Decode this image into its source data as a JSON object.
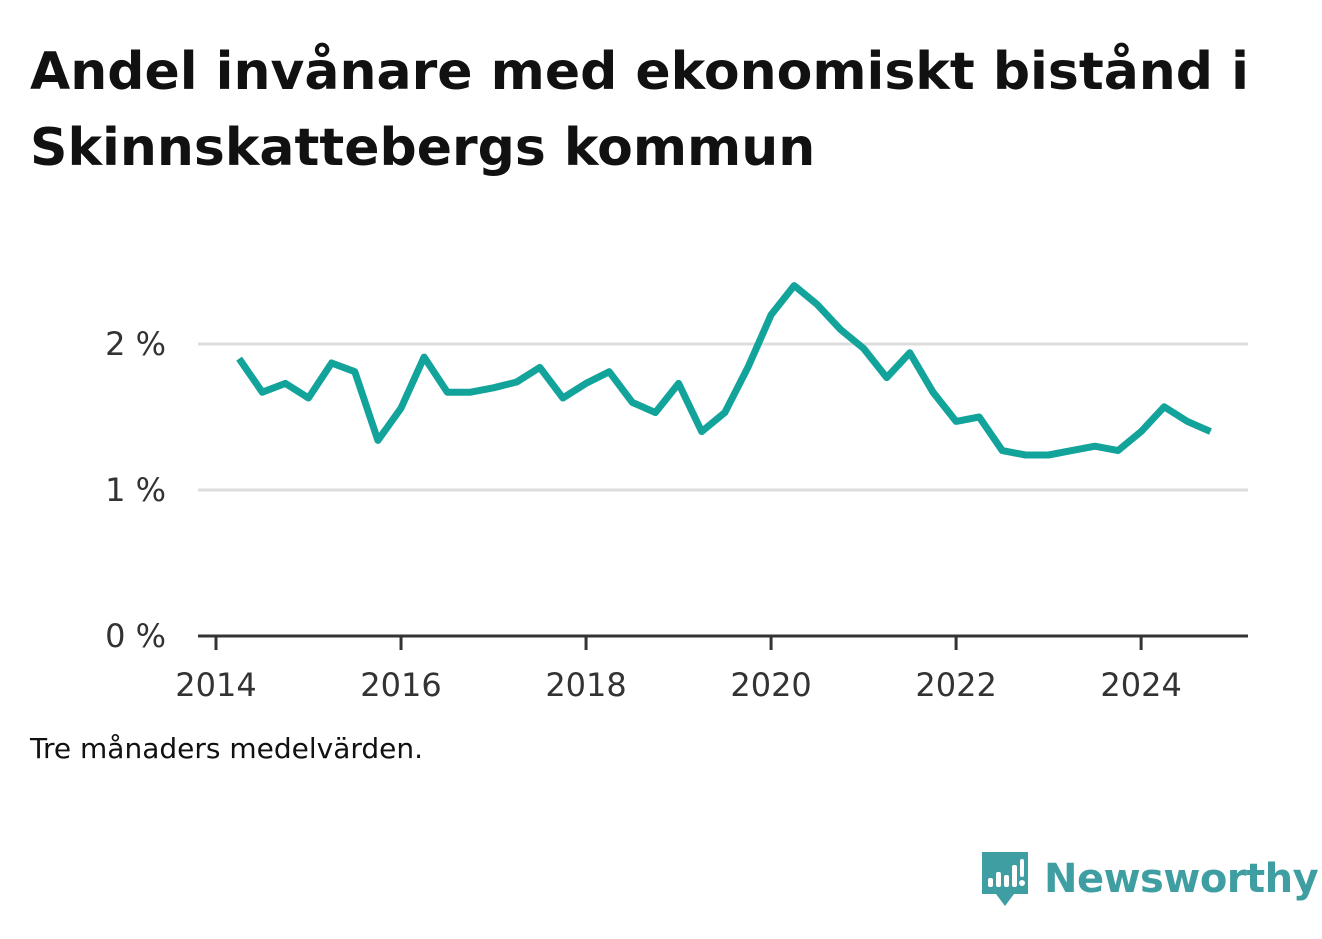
{
  "title": "Andel invånare med ekonomiskt bistånd i Skinnskattebergs kommun",
  "note": "Tre månaders medelvärden.",
  "brand": {
    "name": "Newsworthy",
    "icon": "newsworthy-logo-icon",
    "color": "#3e9ea1"
  },
  "colors": {
    "line": "#12a39a",
    "grid": "#dddddd",
    "axis": "#333333"
  },
  "chart_data": {
    "type": "line",
    "title": "Andel invånare med ekonomiskt bistånd i Skinnskattebergs kommun",
    "xlabel": "",
    "ylabel": "",
    "x_ticks": [
      "2014",
      "2016",
      "2018",
      "2020",
      "2022",
      "2024"
    ],
    "y_ticks": [
      "0 %",
      "1 %",
      "2 %"
    ],
    "xlim": [
      2014,
      2025.35
    ],
    "ylim": [
      0,
      2.6
    ],
    "grid": true,
    "series": [
      {
        "x": [
          "2014-04",
          "2014-07",
          "2014-10",
          "2015-01",
          "2015-04",
          "2015-07",
          "2015-10",
          "2016-01",
          "2016-04",
          "2016-07",
          "2016-10",
          "2017-01",
          "2017-04",
          "2017-07",
          "2017-10",
          "2018-01",
          "2018-04",
          "2018-07",
          "2018-10",
          "2019-01",
          "2019-04",
          "2019-07",
          "2019-10",
          "2020-01",
          "2020-04",
          "2020-07",
          "2020-10",
          "2021-01",
          "2021-04",
          "2021-07",
          "2021-10",
          "2022-01",
          "2022-04",
          "2022-07",
          "2022-10",
          "2023-01",
          "2023-04",
          "2023-07",
          "2023-10",
          "2024-01",
          "2024-04",
          "2024-07",
          "2024-10"
        ],
        "values": [
          1.9,
          1.67,
          1.73,
          1.63,
          1.87,
          1.81,
          1.34,
          1.56,
          1.91,
          1.67,
          1.67,
          1.7,
          1.74,
          1.84,
          1.63,
          1.73,
          1.81,
          1.6,
          1.53,
          1.73,
          1.4,
          1.53,
          1.84,
          2.2,
          2.4,
          2.27,
          2.1,
          1.97,
          1.77,
          1.94,
          1.67,
          1.47,
          1.5,
          1.27,
          1.24,
          1.24,
          1.27,
          1.3,
          1.27,
          1.4,
          1.57,
          1.47,
          1.4
        ]
      }
    ]
  }
}
